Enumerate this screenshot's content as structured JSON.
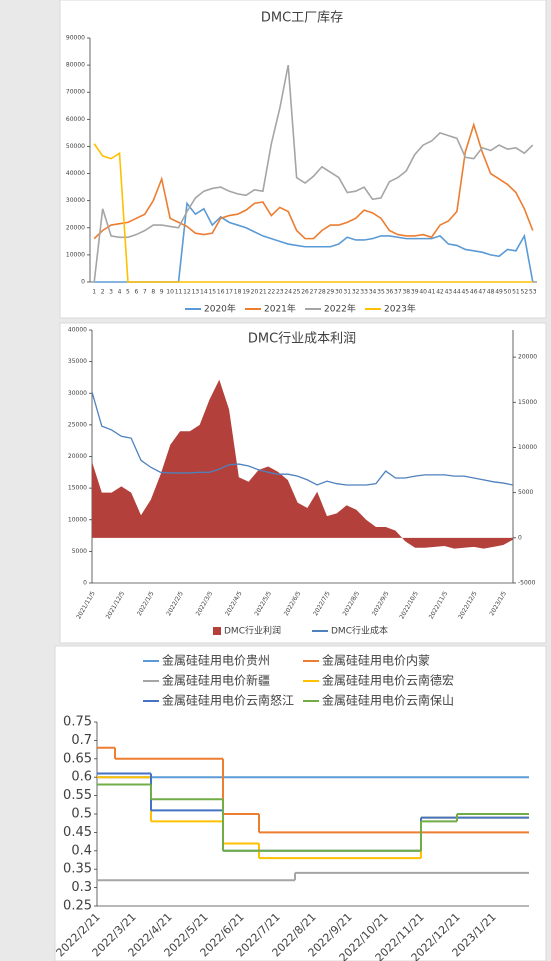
{
  "chart_data": [
    {
      "type": "line",
      "title": "DMC工厂库存",
      "categories": [
        "1",
        "2",
        "3",
        "4",
        "5",
        "6",
        "7",
        "8",
        "9",
        "10",
        "11",
        "12",
        "13",
        "14",
        "15",
        "16",
        "17",
        "18",
        "19",
        "20",
        "21",
        "22",
        "23",
        "24",
        "25",
        "26",
        "27",
        "28",
        "29",
        "30",
        "31",
        "32",
        "33",
        "34",
        "35",
        "36",
        "37",
        "38",
        "39",
        "40",
        "41",
        "42",
        "43",
        "44",
        "45",
        "46",
        "47",
        "48",
        "49",
        "50",
        "51",
        "52",
        "53"
      ],
      "ylim": [
        0,
        90000
      ],
      "yticks": [
        0,
        10000,
        20000,
        30000,
        40000,
        50000,
        60000,
        70000,
        80000,
        90000
      ],
      "grid": false,
      "legend": "bottom",
      "series": [
        {
          "name": "2020年",
          "color": "#5b9bd5",
          "values": [
            0,
            0,
            0,
            0,
            0,
            0,
            0,
            0,
            0,
            0,
            0,
            29000,
            25000,
            27000,
            21000,
            24000,
            22000,
            21000,
            20000,
            18500,
            17000,
            16000,
            15000,
            14000,
            13500,
            13000,
            13000,
            13000,
            13000,
            14000,
            16500,
            15500,
            15500,
            16000,
            17000,
            17000,
            16500,
            16000,
            16000,
            16000,
            16000,
            17000,
            14000,
            13500,
            12000,
            11500,
            11000,
            10000,
            9500,
            12000,
            11500,
            17000,
            0
          ]
        },
        {
          "name": "2021年",
          "color": "#ed7d31",
          "values": [
            16000,
            19000,
            21000,
            21500,
            22000,
            23500,
            25000,
            30000,
            38000,
            23500,
            22000,
            20500,
            18000,
            17500,
            18000,
            23500,
            24500,
            25000,
            26500,
            29000,
            29500,
            24500,
            27500,
            26000,
            19000,
            16000,
            16000,
            19000,
            21000,
            21000,
            22000,
            23500,
            26500,
            25500,
            23500,
            19000,
            17500,
            17000,
            17000,
            17500,
            16500,
            21000,
            22500,
            26000,
            48000,
            58000,
            48000,
            40000,
            38000,
            36000,
            33000,
            27000,
            19000
          ]
        },
        {
          "name": "2022年",
          "color": "#a5a5a5",
          "values": [
            0,
            27000,
            17000,
            16500,
            16500,
            17500,
            19000,
            21000,
            21000,
            20500,
            20000,
            26000,
            31000,
            33500,
            34500,
            35000,
            33500,
            32500,
            32000,
            34000,
            33500,
            51000,
            64000,
            80000,
            38500,
            36500,
            39000,
            42500,
            40500,
            38500,
            33000,
            33500,
            35000,
            30500,
            31000,
            37000,
            38500,
            41000,
            47000,
            50500,
            52000,
            55000,
            54000,
            53000,
            46000,
            45500,
            49500,
            48500,
            50500,
            49000,
            49500,
            47500,
            50500
          ]
        },
        {
          "name": "2023年",
          "color": "#ffc000",
          "values": [
            51000,
            46500,
            45500,
            47500,
            0,
            0,
            0,
            0,
            0,
            0,
            0,
            0,
            0,
            0,
            0,
            0,
            0,
            0,
            0,
            0,
            0,
            0,
            0,
            0,
            0,
            0,
            0,
            0,
            0,
            0,
            0,
            0,
            0,
            0,
            0,
            0,
            0,
            0,
            0,
            0,
            0,
            0,
            0,
            0,
            0,
            0,
            0,
            0,
            0,
            0,
            0,
            0,
            0
          ]
        }
      ]
    },
    {
      "type": "line",
      "title": "DMC行业成本利润",
      "categories": [
        "2021/11/5",
        null,
        null,
        "2021/12/5",
        null,
        null,
        "2022/1/5",
        null,
        null,
        "2022/2/5",
        null,
        null,
        "2022/3/5",
        null,
        null,
        "2022/4/5",
        null,
        null,
        "2022/5/5",
        null,
        null,
        "2022/6/5",
        null,
        null,
        "2022/7/5",
        null,
        null,
        "2022/8/5",
        null,
        null,
        "2022/9/5",
        null,
        null,
        "2022/10/5",
        null,
        null,
        "2022/11/5",
        null,
        null,
        "2022/12/5",
        null,
        null,
        "2023/1/5",
        null
      ],
      "ylim": [
        0,
        40000
      ],
      "yticks": [
        0,
        5000,
        10000,
        15000,
        20000,
        25000,
        30000,
        35000,
        40000
      ],
      "y2lim": [
        -5000,
        23000
      ],
      "y2ticks": [
        -5000,
        0,
        5000,
        10000,
        15000,
        20000
      ],
      "grid": false,
      "legend": "bottom",
      "series": [
        {
          "name": "DMC行业利润",
          "type": "area",
          "axis": "y2",
          "color": "#b3403a",
          "values": [
            8400,
            5000,
            5000,
            5700,
            5000,
            2500,
            4200,
            7000,
            10300,
            11800,
            11800,
            12500,
            15300,
            17500,
            14200,
            6700,
            6200,
            7500,
            7900,
            7300,
            6400,
            3900,
            3300,
            5100,
            2400,
            2700,
            3600,
            3100,
            2000,
            1200,
            1200,
            800,
            -400,
            -1100,
            -1100,
            -1000,
            -900,
            -1200,
            -1100,
            -1000,
            -1200,
            -1000,
            -800,
            -200
          ]
        },
        {
          "name": "DMC行业成本",
          "color": "#4f81bd",
          "values": [
            30200,
            24800,
            24200,
            23200,
            22900,
            19400,
            18300,
            17500,
            17400,
            17400,
            17400,
            17500,
            17500,
            18000,
            18700,
            18800,
            18500,
            17900,
            17500,
            17200,
            17200,
            16900,
            16300,
            15500,
            16100,
            15700,
            15500,
            15500,
            15500,
            15700,
            17700,
            16600,
            16600,
            16900,
            17100,
            17100,
            17100,
            16900,
            16900,
            16600,
            16300,
            16000,
            15800,
            15500
          ]
        }
      ]
    },
    {
      "type": "line",
      "step": true,
      "categories": [
        "2022/2/21",
        null,
        "2022/3/21",
        null,
        "2022/4/21",
        null,
        "2022/5/21",
        null,
        "2022/6/21",
        null,
        "2022/7/21",
        null,
        "2022/8/21",
        null,
        "2022/9/21",
        null,
        "2022/10/21",
        null,
        "2022/11/21",
        null,
        "2022/12/21",
        null,
        "2023/1/21",
        null
      ],
      "ylim": [
        0.25,
        0.75
      ],
      "yticks": [
        0.25,
        0.3,
        0.35,
        0.4,
        0.45,
        0.5,
        0.55,
        0.6,
        0.65,
        0.7,
        0.75
      ],
      "grid": false,
      "legend": "top",
      "series": [
        {
          "name": "金属硅硅用电价贵州",
          "color": "#5b9bd5",
          "values": [
            0.6,
            0.6,
            0.6,
            0.6,
            0.6,
            0.6,
            0.6,
            0.6,
            0.6,
            0.6,
            0.6,
            0.6,
            0.6,
            0.6,
            0.6,
            0.6,
            0.6,
            0.6,
            0.6,
            0.6,
            0.6,
            0.6,
            0.6,
            0.6
          ]
        },
        {
          "name": "金属硅硅用电价内蒙",
          "color": "#ed7d31",
          "values": [
            0.68,
            0.65,
            0.65,
            0.65,
            0.65,
            0.65,
            0.65,
            0.5,
            0.5,
            0.45,
            0.45,
            0.45,
            0.45,
            0.45,
            0.45,
            0.45,
            0.45,
            0.45,
            0.45,
            0.45,
            0.45,
            0.45,
            0.45,
            0.45
          ]
        },
        {
          "name": "金属硅硅用电价新疆",
          "color": "#a5a5a5",
          "values": [
            0.32,
            0.32,
            0.32,
            0.32,
            0.32,
            0.32,
            0.32,
            0.32,
            0.32,
            0.32,
            0.32,
            0.34,
            0.34,
            0.34,
            0.34,
            0.34,
            0.34,
            0.34,
            0.34,
            0.34,
            0.34,
            0.34,
            0.34,
            0.34
          ]
        },
        {
          "name": "金属硅硅用电价云南德宏",
          "color": "#ffc000",
          "values": [
            0.6,
            0.6,
            0.6,
            0.48,
            0.48,
            0.48,
            0.48,
            0.42,
            0.42,
            0.38,
            0.38,
            0.38,
            0.38,
            0.38,
            0.38,
            0.38,
            0.38,
            0.38,
            0.49,
            0.49,
            0.49,
            0.49,
            0.49,
            0.49
          ]
        },
        {
          "name": "金属硅硅用电价云南怒江",
          "color": "#4472c4",
          "values": [
            0.61,
            0.61,
            0.61,
            0.51,
            0.51,
            0.51,
            0.51,
            0.4,
            0.4,
            0.4,
            0.4,
            0.4,
            0.4,
            0.4,
            0.4,
            0.4,
            0.4,
            0.4,
            0.49,
            0.49,
            0.49,
            0.49,
            0.49,
            0.49
          ]
        },
        {
          "name": "金属硅硅用电价云南保山",
          "color": "#70ad47",
          "values": [
            0.58,
            0.58,
            0.58,
            0.54,
            0.54,
            0.54,
            0.54,
            0.4,
            0.4,
            0.4,
            0.4,
            0.4,
            0.4,
            0.4,
            0.4,
            0.4,
            0.4,
            0.4,
            0.48,
            0.48,
            0.5,
            0.5,
            0.5,
            0.5
          ]
        }
      ]
    }
  ]
}
